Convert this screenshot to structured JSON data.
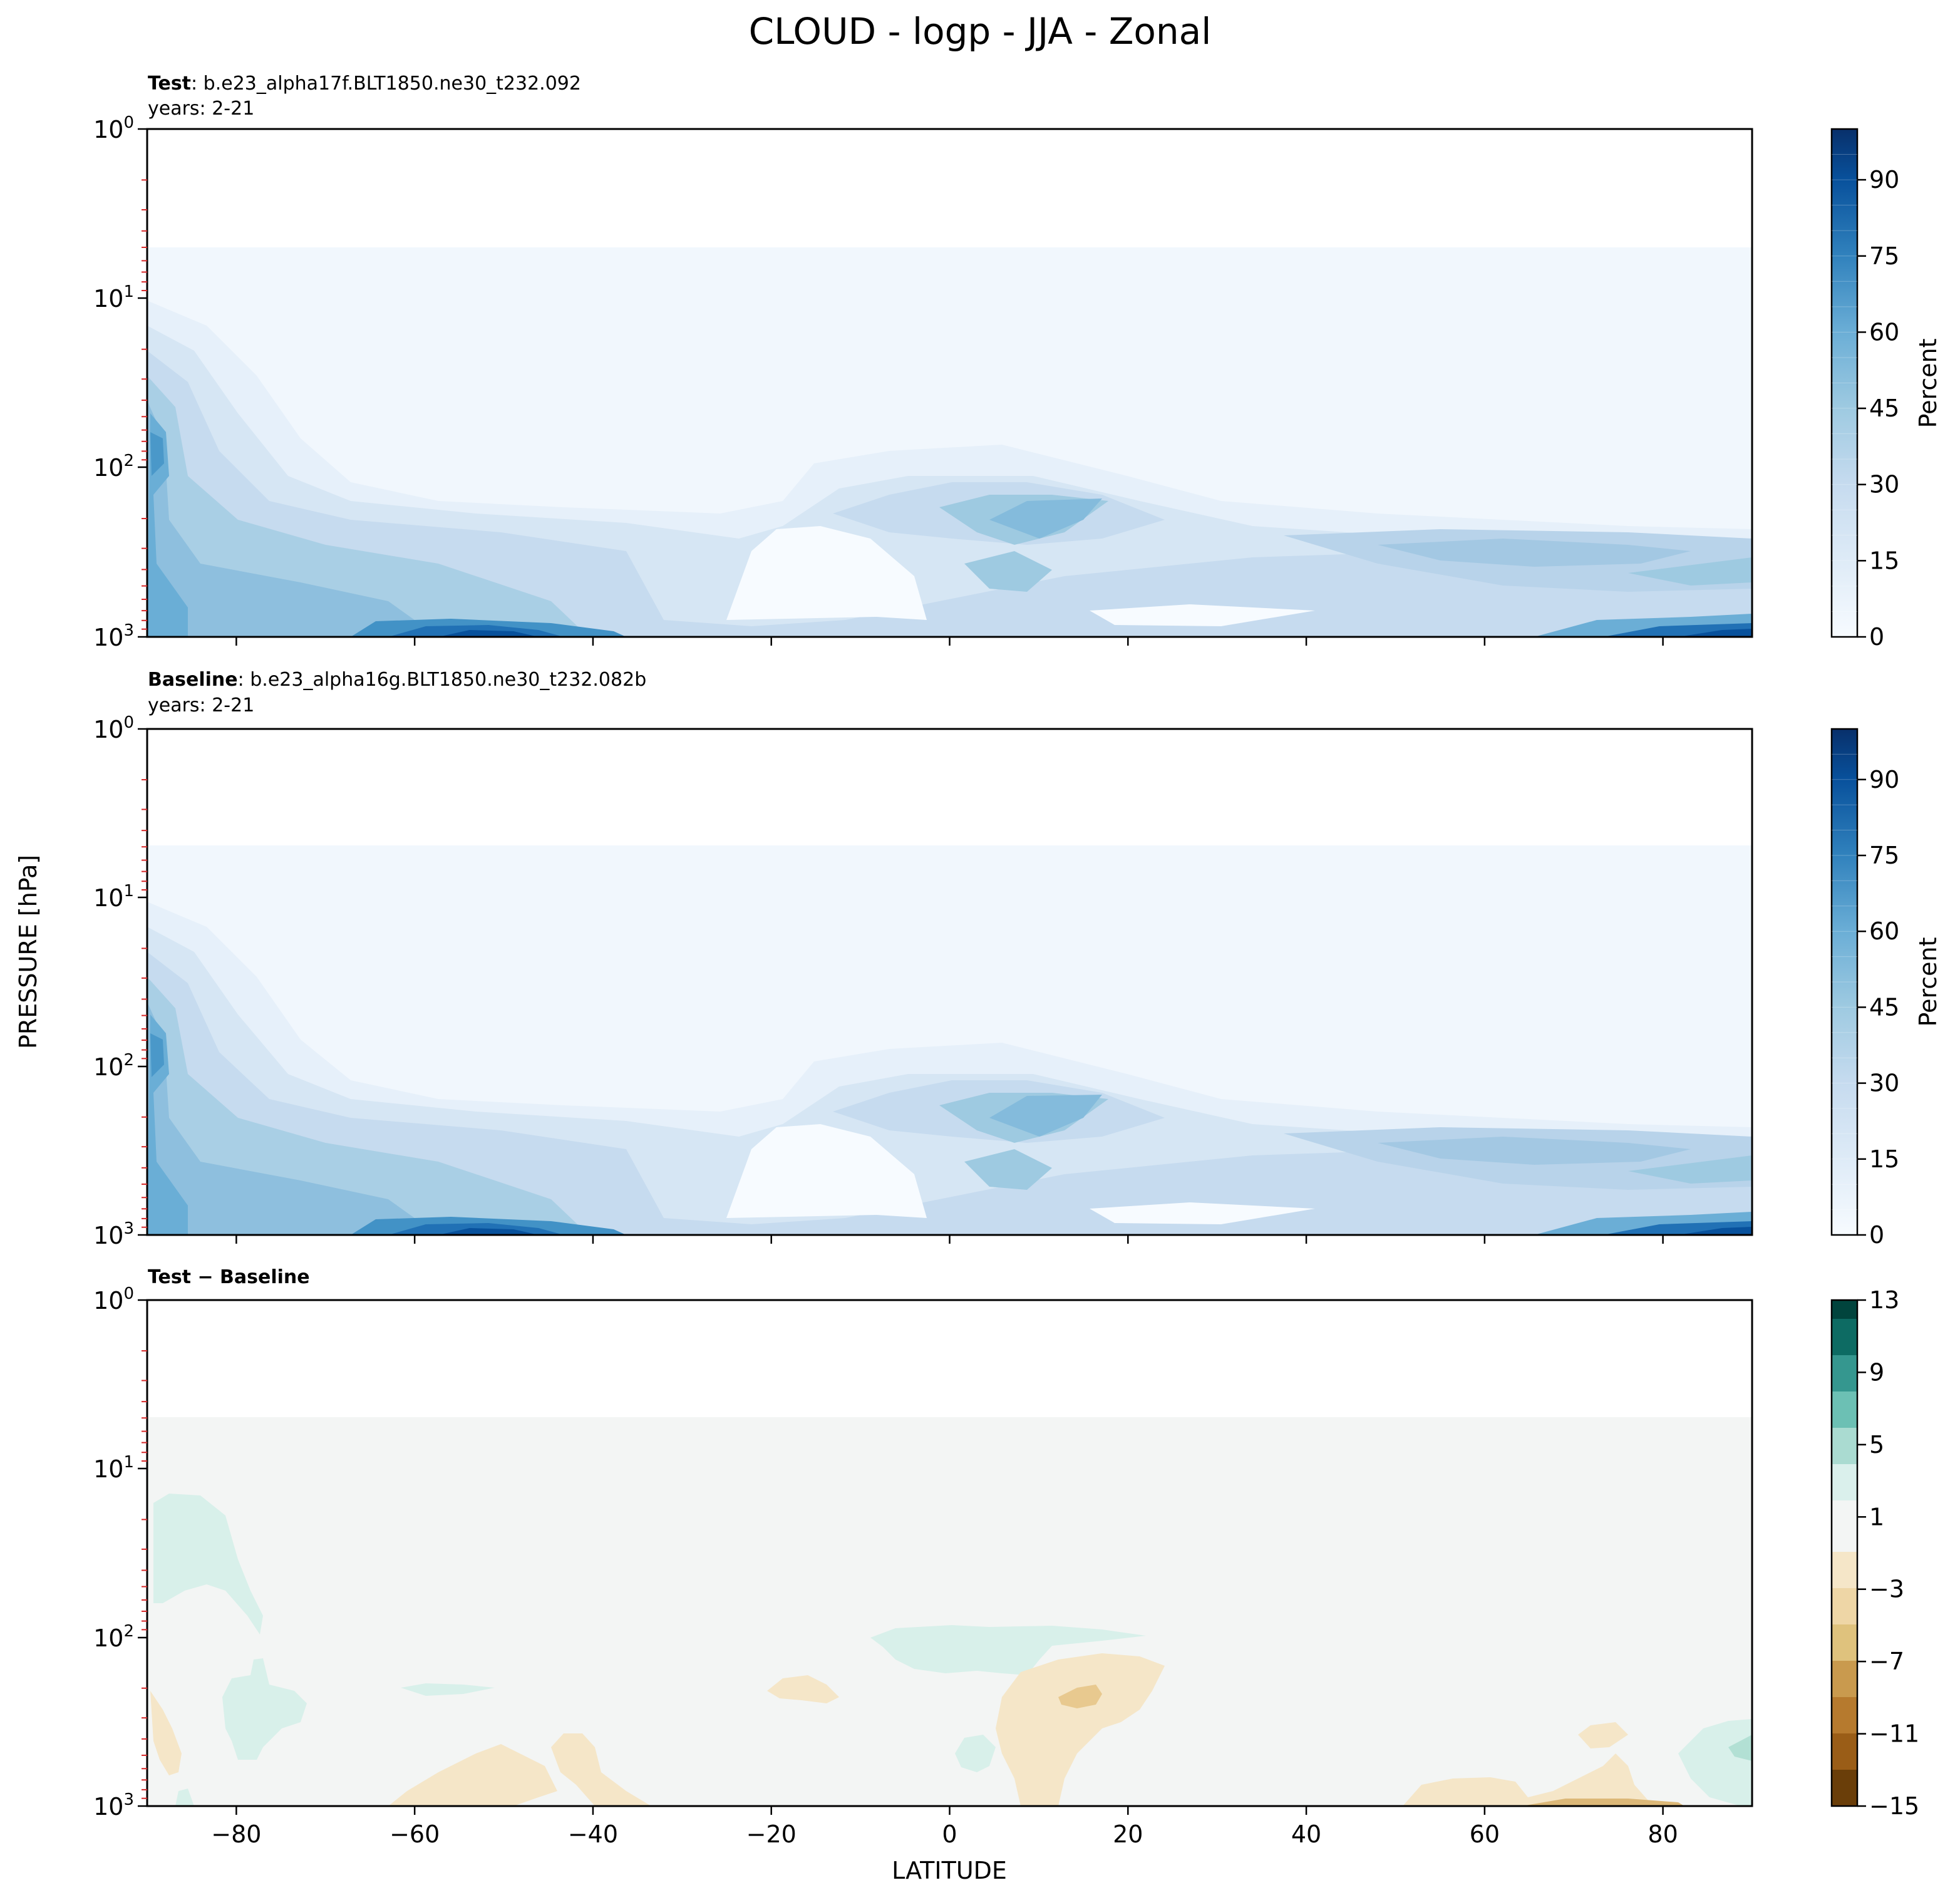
{
  "figure": {
    "title": "CLOUD - logp - JJA - Zonal",
    "xlabel": "LATITUDE",
    "ylabel": "PRESSURE [hPa]"
  },
  "chart_data": [
    {
      "type": "heatmap",
      "panel": "test",
      "label_bold": "Test",
      "label_rest": ": b.e23_alpha17f.BLT1850.ne30_t232.092",
      "years": "years: 2-21",
      "x": {
        "lim": [
          -90,
          90
        ],
        "ticks": [
          -80,
          -60,
          -40,
          -20,
          0,
          20,
          40,
          60,
          80
        ]
      },
      "y": {
        "scale": "log",
        "inverted": true,
        "lim": [
          1,
          1000
        ],
        "ticks": [
          {
            "exp": "0"
          },
          {
            "exp": "1"
          },
          {
            "exp": "2"
          },
          {
            "exp": "3"
          }
        ]
      },
      "colorbar": {
        "label": "Percent",
        "ticks": [
          "0",
          "15",
          "30",
          "45",
          "60",
          "75",
          "90"
        ],
        "levels": [
          0,
          100
        ],
        "colormap": "Blues"
      },
      "regions": [
        {
          "lat": -86,
          "p": 70,
          "value": 58
        },
        {
          "lat": -75,
          "p": 500,
          "value": 55
        },
        {
          "lat": -55,
          "p": 900,
          "value": 85
        },
        {
          "lat": -40,
          "p": 400,
          "value": 30
        },
        {
          "lat": -10,
          "p": 500,
          "value": 3
        },
        {
          "lat": 12,
          "p": 180,
          "value": 45
        },
        {
          "lat": 65,
          "p": 280,
          "value": 35
        },
        {
          "lat": 80,
          "p": 950,
          "value": 80
        }
      ]
    },
    {
      "type": "heatmap",
      "panel": "baseline",
      "label_bold": "Baseline",
      "label_rest": ": b.e23_alpha16g.BLT1850.ne30_t232.082b",
      "years": "years: 2-21",
      "x": {
        "lim": [
          -90,
          90
        ],
        "ticks": [
          -80,
          -60,
          -40,
          -20,
          0,
          20,
          40,
          60,
          80
        ]
      },
      "y": {
        "scale": "log",
        "inverted": true,
        "lim": [
          1,
          1000
        ],
        "ticks": [
          {
            "exp": "0"
          },
          {
            "exp": "1"
          },
          {
            "exp": "2"
          },
          {
            "exp": "3"
          }
        ]
      },
      "colorbar": {
        "label": "Percent",
        "ticks": [
          "0",
          "15",
          "30",
          "45",
          "60",
          "75",
          "90"
        ],
        "levels": [
          0,
          100
        ],
        "colormap": "Blues"
      },
      "regions": [
        {
          "lat": -86,
          "p": 70,
          "value": 58
        },
        {
          "lat": -75,
          "p": 500,
          "value": 55
        },
        {
          "lat": -55,
          "p": 900,
          "value": 85
        },
        {
          "lat": -40,
          "p": 400,
          "value": 30
        },
        {
          "lat": -10,
          "p": 500,
          "value": 3
        },
        {
          "lat": 12,
          "p": 180,
          "value": 48
        },
        {
          "lat": 65,
          "p": 280,
          "value": 35
        },
        {
          "lat": 80,
          "p": 950,
          "value": 80
        }
      ]
    },
    {
      "type": "heatmap",
      "panel": "difference",
      "label_bold": "Test − Baseline",
      "x": {
        "lim": [
          -90,
          90
        ],
        "ticks": [
          -80,
          -60,
          -40,
          -20,
          0,
          20,
          40,
          60,
          80
        ],
        "ticklabels": [
          "−80",
          "−60",
          "−40",
          "−20",
          "0",
          "20",
          "40",
          "60",
          "80"
        ]
      },
      "y": {
        "scale": "log",
        "inverted": true,
        "lim": [
          1,
          1000
        ],
        "ticks": [
          {
            "exp": "0"
          },
          {
            "exp": "1"
          },
          {
            "exp": "2"
          },
          {
            "exp": "3"
          }
        ]
      },
      "colorbar": {
        "label": "",
        "ticks": [
          "13",
          "9",
          "5",
          "1",
          "−3",
          "−7",
          "−11",
          "−15"
        ],
        "levels": [
          -15,
          13
        ],
        "colormap": "BrBG"
      },
      "regions": [
        {
          "lat": -82,
          "p": 40,
          "value": 2
        },
        {
          "lat": 12,
          "p": 110,
          "value": 2
        },
        {
          "lat": 12,
          "p": 220,
          "value": -3
        },
        {
          "lat": -50,
          "p": 600,
          "value": -2
        },
        {
          "lat": 70,
          "p": 800,
          "value": -2
        },
        {
          "lat": 87,
          "p": 500,
          "value": 4
        }
      ]
    }
  ]
}
